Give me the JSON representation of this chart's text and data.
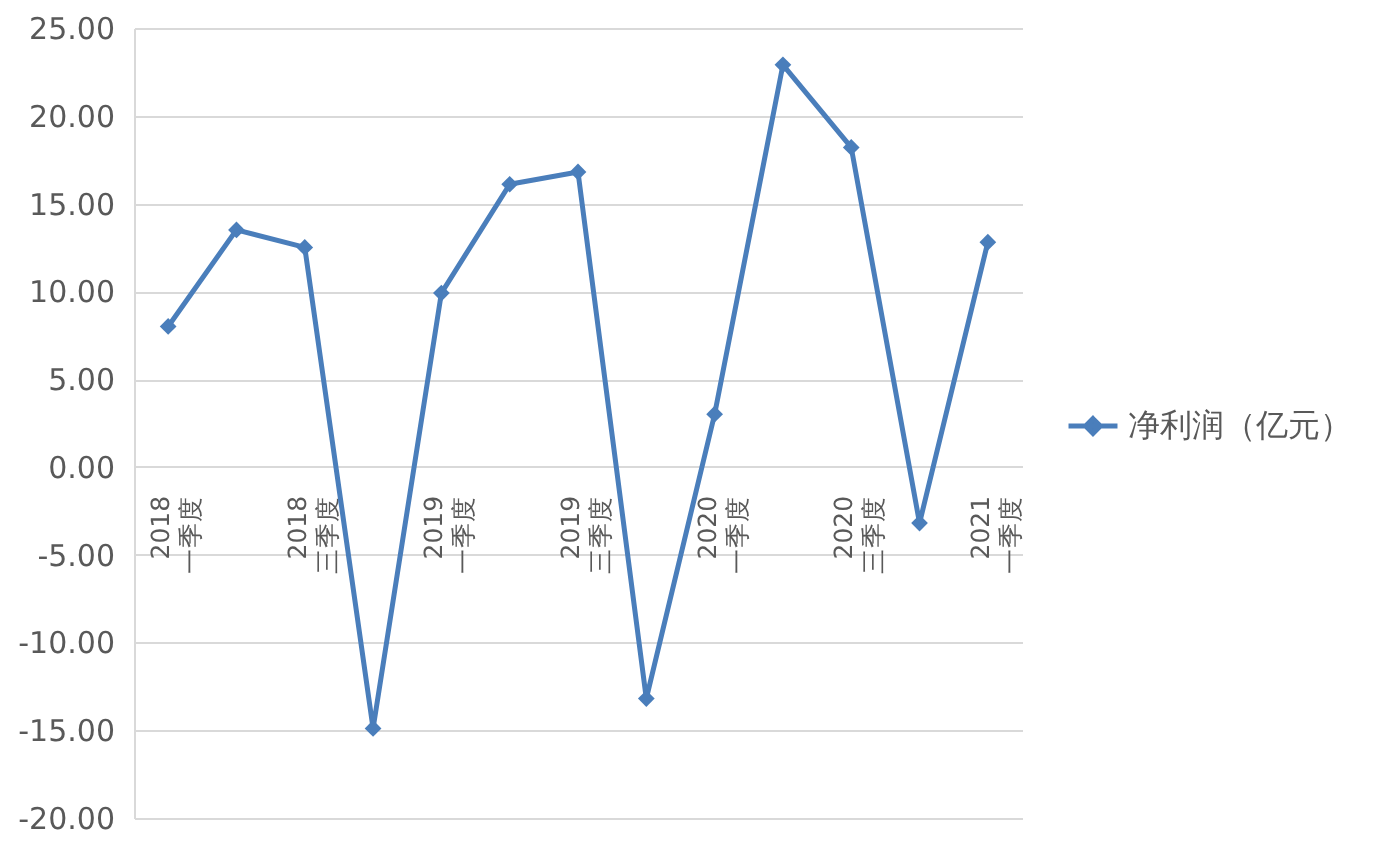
{
  "chart_data": {
    "type": "line",
    "categories": [
      "2018\n一季度",
      null,
      "2018\n三季度",
      null,
      "2019\n一季度",
      null,
      "2019\n三季度",
      null,
      "2020\n一季度",
      null,
      "2020\n三季度",
      null,
      "2021\n一季度"
    ],
    "series": [
      {
        "name": "净利润（亿元）",
        "color": "#4a7ebb",
        "values": [
          8.0,
          13.5,
          12.5,
          -14.9,
          9.9,
          16.1,
          16.8,
          -13.2,
          3.0,
          22.9,
          18.2,
          -3.2,
          12.8
        ]
      }
    ],
    "ylim": [
      -20,
      25
    ],
    "yticks": [
      {
        "value": -20,
        "label": "-20.00"
      },
      {
        "value": -15,
        "label": "-15.00"
      },
      {
        "value": -10,
        "label": "-10.00"
      },
      {
        "value": -5,
        "label": "-5.00"
      },
      {
        "value": 0,
        "label": "0.00"
      },
      {
        "value": 5,
        "label": "5.00"
      },
      {
        "value": 10,
        "label": "10.00"
      },
      {
        "value": 15,
        "label": "15.00"
      },
      {
        "value": 20,
        "label": "20.00"
      },
      {
        "value": 25,
        "label": "25.00"
      }
    ],
    "grid": "y",
    "legend": "right",
    "marker": "diamond"
  }
}
